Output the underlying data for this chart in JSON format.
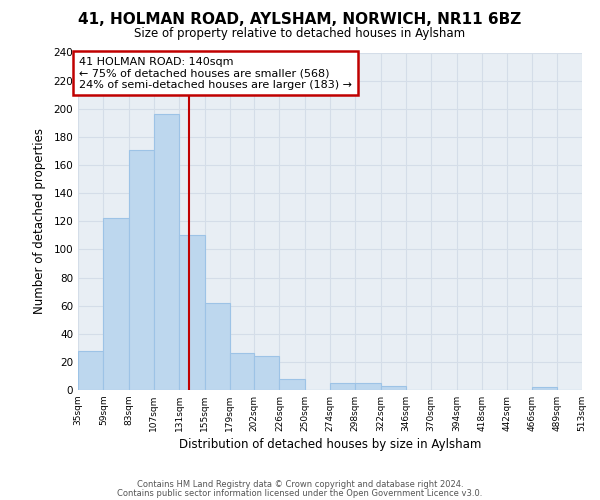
{
  "title": "41, HOLMAN ROAD, AYLSHAM, NORWICH, NR11 6BZ",
  "subtitle": "Size of property relative to detached houses in Aylsham",
  "xlabel": "Distribution of detached houses by size in Aylsham",
  "ylabel": "Number of detached properties",
  "bar_color": "#bdd7ee",
  "bar_edge_color": "#9dc3e6",
  "vline_x": 140,
  "vline_color": "#c00000",
  "annotation_line1": "41 HOLMAN ROAD: 140sqm",
  "annotation_line2": "← 75% of detached houses are smaller (568)",
  "annotation_line3": "24% of semi-detached houses are larger (183) →",
  "annotation_box_color": "white",
  "annotation_box_edge_color": "#c00000",
  "bins": [
    35,
    59,
    83,
    107,
    131,
    155,
    179,
    202,
    226,
    250,
    274,
    298,
    322,
    346,
    370,
    394,
    418,
    442,
    466,
    489,
    513
  ],
  "counts": [
    28,
    122,
    171,
    196,
    110,
    62,
    26,
    24,
    8,
    0,
    5,
    5,
    3,
    0,
    0,
    0,
    0,
    0,
    2,
    0
  ],
  "ylim": [
    0,
    240
  ],
  "yticks": [
    0,
    20,
    40,
    60,
    80,
    100,
    120,
    140,
    160,
    180,
    200,
    220,
    240
  ],
  "tick_labels": [
    "35sqm",
    "59sqm",
    "83sqm",
    "107sqm",
    "131sqm",
    "155sqm",
    "179sqm",
    "202sqm",
    "226sqm",
    "250sqm",
    "274sqm",
    "298sqm",
    "322sqm",
    "346sqm",
    "370sqm",
    "394sqm",
    "418sqm",
    "442sqm",
    "466sqm",
    "489sqm",
    "513sqm"
  ],
  "footer_line1": "Contains HM Land Registry data © Crown copyright and database right 2024.",
  "footer_line2": "Contains public sector information licensed under the Open Government Licence v3.0.",
  "background_color": "#ffffff",
  "grid_color": "#d4dde8"
}
